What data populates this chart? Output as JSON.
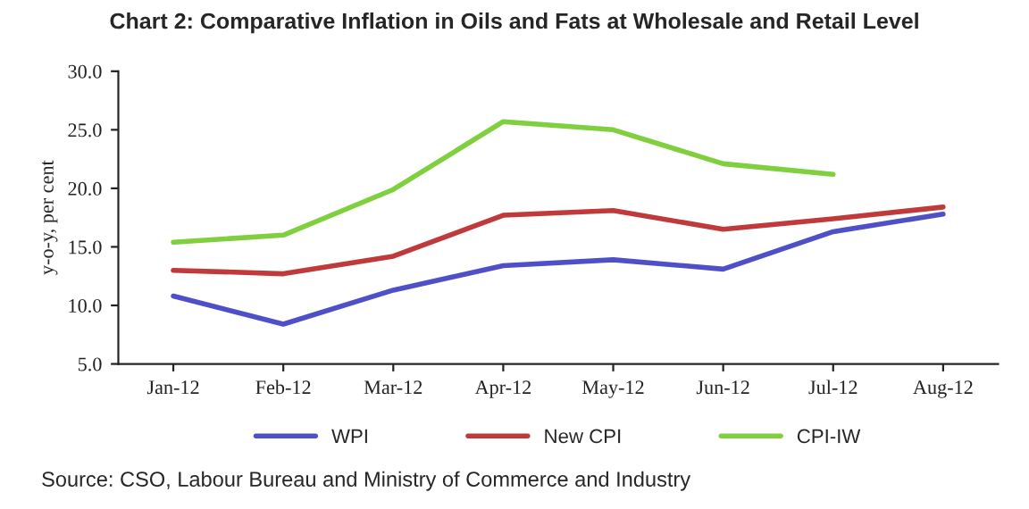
{
  "chart_data": {
    "type": "line",
    "title": "Chart 2: Comparative Inflation in Oils and Fats at Wholesale and Retail Level",
    "ylabel": "y-o-y, per cent",
    "categories": [
      "Jan-12",
      "Feb-12",
      "Mar-12",
      "Apr-12",
      "May-12",
      "Jun-12",
      "Jul-12",
      "Aug-12"
    ],
    "series": [
      {
        "name": "WPI",
        "color": "#4f4fc8",
        "values": [
          10.8,
          8.4,
          11.3,
          13.4,
          13.9,
          13.1,
          16.3,
          17.8
        ]
      },
      {
        "name": "New CPI",
        "color": "#c0393b",
        "values": [
          13.0,
          12.7,
          14.2,
          17.7,
          18.1,
          16.5,
          17.4,
          18.4
        ]
      },
      {
        "name": "CPI-IW",
        "color": "#7fcf3f",
        "values": [
          15.4,
          16.0,
          19.9,
          25.7,
          25.0,
          22.1,
          21.2,
          null
        ]
      }
    ],
    "ylim": [
      5.0,
      30.0
    ],
    "yticks": [
      {
        "value": 5,
        "label": "5.0"
      },
      {
        "value": 10,
        "label": "10.0"
      },
      {
        "value": 15,
        "label": "15.0"
      },
      {
        "value": 20,
        "label": "20.0"
      },
      {
        "value": 25,
        "label": "25.0"
      },
      {
        "value": 30,
        "label": "30.0"
      }
    ],
    "grid": false,
    "legend": "bottom",
    "annotations": [
      "Source: CSO, Labour Bureau and Ministry of Commerce and Industry"
    ]
  }
}
